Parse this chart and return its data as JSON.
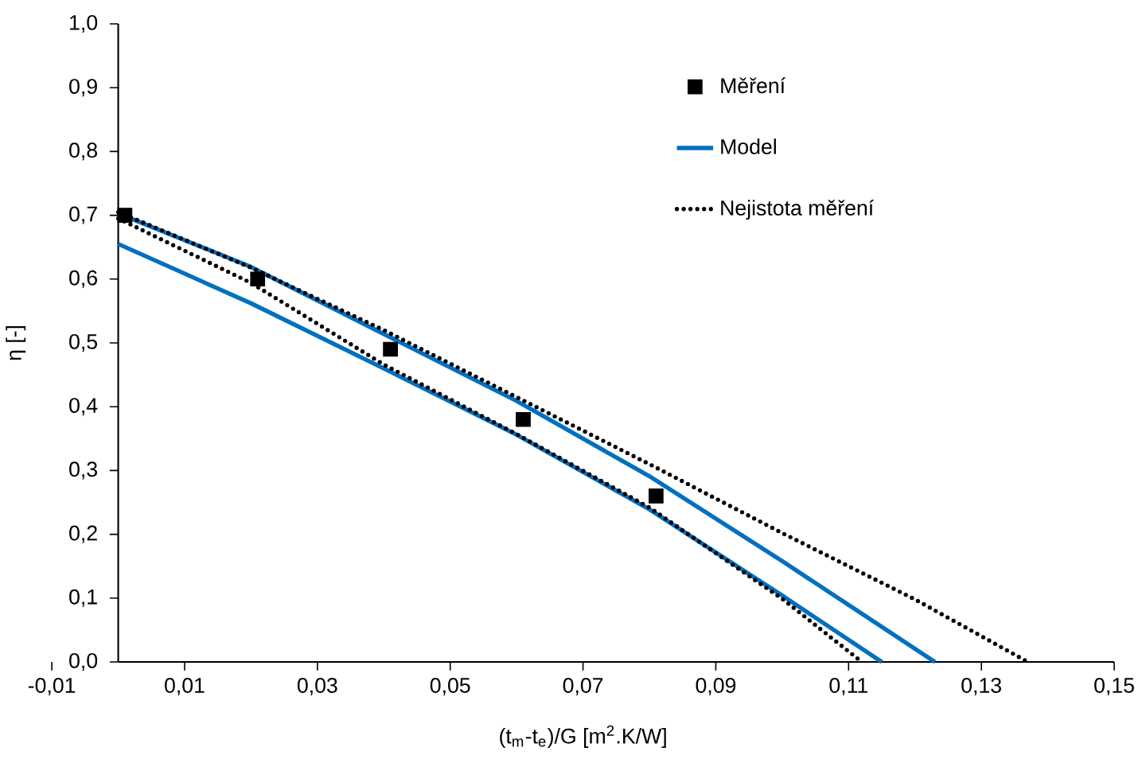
{
  "chart_data": {
    "type": "scatter",
    "xlabel": "(t$_{m}$-t$_{e}$)/G [m$^{2}$.K/W]",
    "ylabel": "η [-]",
    "xlim": [
      -0.01,
      0.15
    ],
    "ylim": [
      0,
      1
    ],
    "xticks": [
      {
        "value": -0.01,
        "label": "-0,01"
      },
      {
        "value": 0.01,
        "label": "0,01"
      },
      {
        "value": 0.03,
        "label": "0,03"
      },
      {
        "value": 0.05,
        "label": "0,05"
      },
      {
        "value": 0.07,
        "label": "0,07"
      },
      {
        "value": 0.09,
        "label": "0,09"
      },
      {
        "value": 0.11,
        "label": "0,11"
      },
      {
        "value": 0.13,
        "label": "0,13"
      },
      {
        "value": 0.15,
        "label": "0,15"
      }
    ],
    "yticks": [
      {
        "value": 0,
        "label": "0,0"
      },
      {
        "value": 0.1,
        "label": "0,1"
      },
      {
        "value": 0.2,
        "label": "0,2"
      },
      {
        "value": 0.3,
        "label": "0,3"
      },
      {
        "value": 0.4,
        "label": "0,4"
      },
      {
        "value": 0.5,
        "label": "0,5"
      },
      {
        "value": 0.6,
        "label": "0,6"
      },
      {
        "value": 0.7,
        "label": "0,7"
      },
      {
        "value": 0.8,
        "label": "0,8"
      },
      {
        "value": 0.9,
        "label": "0,9"
      },
      {
        "value": 1,
        "label": "1,0"
      }
    ],
    "legend": "top right",
    "grid": false,
    "series": [
      {
        "name": "Měření",
        "marker": "square",
        "color": "#000000",
        "x": [
          0.001,
          0.021,
          0.041,
          0.061,
          0.081
        ],
        "values": [
          0.7,
          0.6,
          0.49,
          0.38,
          0.26
        ]
      },
      {
        "name": "Model",
        "type": "line",
        "marker": "none",
        "line_style": "solid",
        "color": "#0070c0",
        "x": [
          0,
          0.02,
          0.04,
          0.06,
          0.08,
          0.1,
          0.123
        ],
        "values": [
          0.703,
          0.619,
          0.514,
          0.409,
          0.291,
          0.158,
          0
        ]
      },
      {
        "type": "line",
        "marker": "none",
        "line_style": "solid",
        "color": "#0070c0",
        "x": [
          0,
          0.02,
          0.04,
          0.06,
          0.08,
          0.1,
          0.115
        ],
        "values": [
          0.655,
          0.562,
          0.46,
          0.356,
          0.239,
          0.104,
          0
        ]
      },
      {
        "name": "Nejistota měření",
        "type": "line",
        "marker": "none",
        "line_style": "dotted",
        "color": "#000000",
        "x": [
          0,
          0.02,
          0.04,
          0.06,
          0.08,
          0.1,
          0.12,
          0.137
        ],
        "values": [
          0.705,
          0.618,
          0.52,
          0.415,
          0.31,
          0.202,
          0.098,
          0
        ]
      },
      {
        "type": "line",
        "marker": "none",
        "line_style": "dotted",
        "color": "#000000",
        "x": [
          0,
          0.02,
          0.04,
          0.06,
          0.08,
          0.1,
          0.112
        ],
        "values": [
          0.695,
          0.594,
          0.466,
          0.357,
          0.242,
          0.099,
          0
        ]
      }
    ]
  }
}
